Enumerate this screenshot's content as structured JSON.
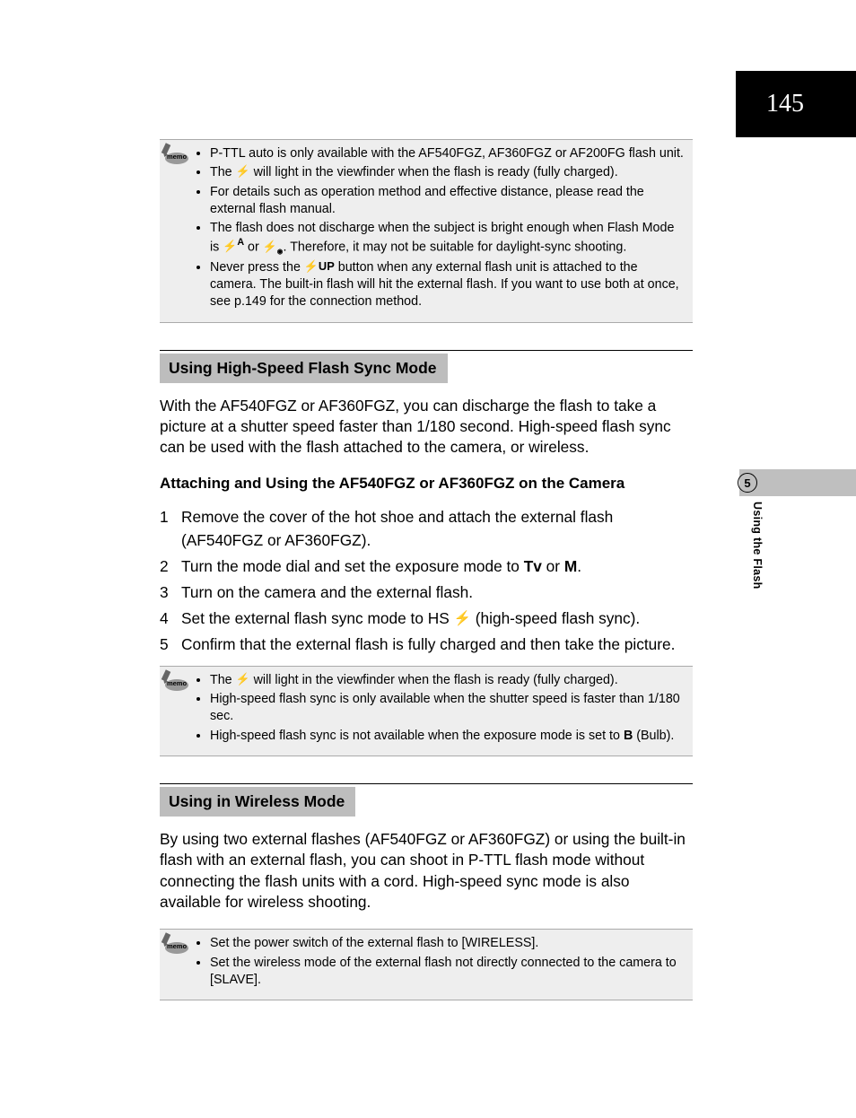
{
  "page_number": "145",
  "chapter_number": "5",
  "chapter_title": "Using the Flash",
  "memo_label": "memo",
  "flash_glyph": "⚡",
  "flash_auto_suffix": "A",
  "flash_redeye_suffix": "◉",
  "up_label": "UP",
  "memo1": {
    "items": [
      {
        "pre": "P-TTL auto is only available with the AF540FGZ, AF360FGZ or AF200FG flash unit."
      },
      {
        "pre": "The ",
        "mid_bolt": true,
        "post": " will light in the viewfinder when the flash is ready (fully charged)."
      },
      {
        "pre": "For details such as operation method and effective distance, please read the external flash manual."
      },
      {
        "pre": "The flash does not discharge when the subject is bright enough when Flash Mode is ",
        "modes": true,
        "post": ". Therefore, it may not be suitable for daylight-sync shooting."
      },
      {
        "pre": "Never press the ",
        "up_btn": true,
        "post": " button when any external flash unit is attached to the camera. The built-in flash will hit the external flash. If you want to use both at once, see p.149 for the connection method."
      }
    ]
  },
  "section1": {
    "heading": "Using High-Speed Flash Sync Mode",
    "para": "With the AF540FGZ or AF360FGZ, you can discharge the flash to take a picture at a shutter speed faster than 1/180 second. High-speed flash sync can be used with the flash attached to the camera, or wireless.",
    "subheading": "Attaching and Using the AF540FGZ or AF360FGZ on the Camera",
    "steps": [
      {
        "n": "1",
        "text": "Remove the cover of the hot shoe and attach the external flash (AF540FGZ or AF360FGZ)."
      },
      {
        "n": "2",
        "pre": "Turn the mode dial and set the exposure mode to ",
        "sym1": "Tv",
        "mid": " or ",
        "sym2": "M",
        "post": "."
      },
      {
        "n": "3",
        "text": "Turn on the camera and the external flash."
      },
      {
        "n": "4",
        "pre": "Set the external flash sync mode to HS",
        "bolt": true,
        "post": " (high-speed flash sync)."
      },
      {
        "n": "5",
        "text": "Confirm that the external flash is fully charged and then take the picture."
      }
    ]
  },
  "memo2": {
    "items": [
      {
        "pre": "The ",
        "mid_bolt": true,
        "post": " will light in the viewfinder when the flash is ready (fully charged)."
      },
      {
        "pre": "High-speed flash sync is only available when the shutter speed is faster than 1/180 sec."
      },
      {
        "pre": "High-speed flash sync is not available when the exposure mode is set to ",
        "sym": "B",
        "post": " (Bulb)."
      }
    ]
  },
  "section2": {
    "heading": "Using in Wireless Mode",
    "para": "By using two external flashes (AF540FGZ or AF360FGZ) or using the built-in flash with an external flash, you can shoot in P-TTL flash mode without connecting the flash units with a cord. High-speed sync mode is also available for wireless shooting."
  },
  "memo3": {
    "items": [
      {
        "pre": "Set the power switch of the external flash to [WIRELESS]."
      },
      {
        "pre": "Set the wireless mode of the external flash not directly connected to the camera to [SLAVE]."
      }
    ]
  },
  "colors": {
    "heading_bg": "#bdbdbd",
    "memo_bg": "#eeeeee",
    "tab_bg": "#bfbfbf"
  }
}
